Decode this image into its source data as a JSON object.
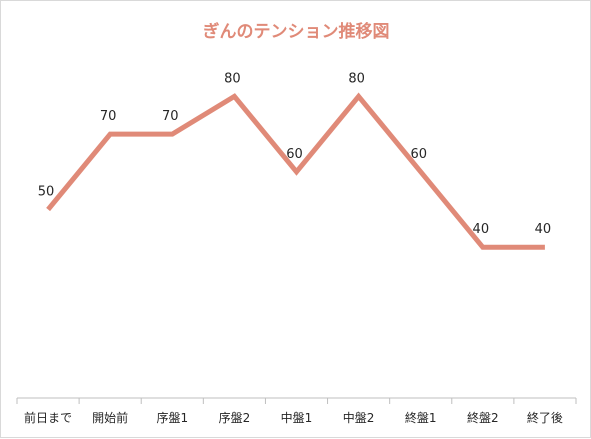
{
  "chart_data": {
    "type": "line",
    "title": "ぎんのテンション推移図",
    "categories": [
      "前日まで",
      "開始前",
      "序盤1",
      "序盤2",
      "中盤1",
      "中盤2",
      "終盤1",
      "終盤2",
      "終了後"
    ],
    "series": [
      {
        "values": [
          50,
          70,
          70,
          80,
          60,
          80,
          60,
          40,
          40
        ]
      }
    ],
    "ylim": [
      0,
      100
    ],
    "data_labels": [
      "50",
      "70",
      "70",
      "80",
      "60",
      "80",
      "60",
      "40",
      "40"
    ],
    "grid": false,
    "legend": "none",
    "colors": {
      "line": "#e08a78",
      "title": "#e08a78",
      "axis": "#bfbfbf",
      "text": "#262626"
    }
  }
}
